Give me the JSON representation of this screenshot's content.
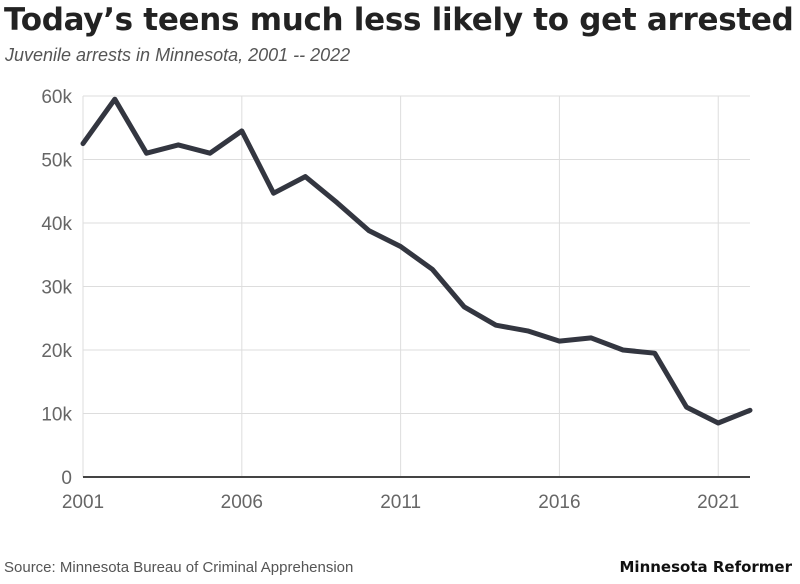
{
  "header": {
    "title": "Today’s teens much less likely to get arrested",
    "subtitle": "Juvenile arrests in Minnesota, 2001 -- 2022"
  },
  "footer": {
    "source": "Source: Minnesota Bureau of Criminal Apprehension",
    "brand": "Minnesota Reformer"
  },
  "colors": {
    "line": "#333640",
    "grid": "#dddddd",
    "axis": "#444444",
    "tick_text": "#666666"
  },
  "chart_data": {
    "type": "line",
    "title": "Today’s teens much less likely to get arrested",
    "subtitle": "Juvenile arrests in Minnesota, 2001 -- 2022",
    "xlabel": "",
    "ylabel": "",
    "x": [
      2001,
      2002,
      2003,
      2004,
      2005,
      2006,
      2007,
      2008,
      2009,
      2010,
      2011,
      2012,
      2013,
      2014,
      2015,
      2016,
      2017,
      2018,
      2019,
      2020,
      2021,
      2022
    ],
    "series": [
      {
        "values": [
          52500,
          59500,
          51000,
          52300,
          51000,
          54500,
          44700,
          47300,
          43200,
          38800,
          36300,
          32700,
          26800,
          23900,
          23000,
          21400,
          21900,
          20000,
          19500,
          11000,
          8500,
          10500
        ]
      }
    ],
    "xlim": [
      2001,
      2022
    ],
    "ylim": [
      0,
      60000
    ],
    "x_ticks": [
      2001,
      2006,
      2011,
      2016,
      2021
    ],
    "x_tick_labels": [
      "2001",
      "2006",
      "2011",
      "2016",
      "2021"
    ],
    "y_ticks": [
      0,
      10000,
      20000,
      30000,
      40000,
      50000,
      60000
    ],
    "y_tick_labels": [
      "0",
      "10k",
      "20k",
      "30k",
      "40k",
      "50k",
      "60k"
    ],
    "grid": true,
    "legend": "none"
  }
}
